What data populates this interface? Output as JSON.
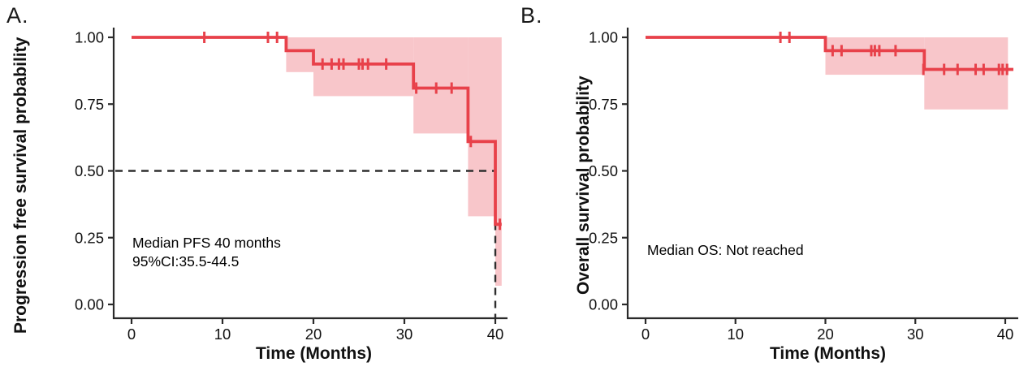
{
  "figure": {
    "background": "#ffffff"
  },
  "panels": [
    {
      "label": "A."
    },
    {
      "label": "B."
    }
  ],
  "chart_data": [
    {
      "type": "line",
      "subtype": "kaplan-meier-step",
      "panel": "A",
      "title": "",
      "xlabel": "Time (Months)",
      "ylabel": "Progression free survival probability",
      "xlim": [
        0,
        41
      ],
      "ylim": [
        0,
        1.0
      ],
      "grid": false,
      "legend": "none",
      "xticks": [
        0,
        10,
        20,
        30,
        40
      ],
      "xtick_labels": [
        "0",
        "10",
        "20",
        "30",
        "40"
      ],
      "yticks": [
        0.0,
        0.25,
        0.5,
        0.75,
        1.0
      ],
      "ytick_labels": [
        "0.00",
        "0.25",
        "0.50",
        "0.75",
        "1.00"
      ],
      "steps": [
        [
          0,
          1.0
        ],
        [
          17,
          1.0
        ],
        [
          17,
          0.95
        ],
        [
          20,
          0.95
        ],
        [
          20,
          0.9
        ],
        [
          31,
          0.9
        ],
        [
          31,
          0.81
        ],
        [
          37,
          0.81
        ],
        [
          37,
          0.61
        ],
        [
          40,
          0.61
        ],
        [
          40,
          0.3
        ],
        [
          40.7,
          0.3
        ]
      ],
      "censors": [
        [
          8,
          1.0
        ],
        [
          15,
          1.0
        ],
        [
          16,
          1.0
        ],
        [
          21,
          0.9
        ],
        [
          22,
          0.9
        ],
        [
          22.8,
          0.9
        ],
        [
          23.3,
          0.9
        ],
        [
          25,
          0.9
        ],
        [
          25.4,
          0.9
        ],
        [
          26,
          0.9
        ],
        [
          28,
          0.9
        ],
        [
          31.3,
          0.81
        ],
        [
          33.5,
          0.81
        ],
        [
          35.2,
          0.81
        ],
        [
          37.3,
          0.61
        ],
        [
          40.5,
          0.3
        ]
      ],
      "ci_band": [
        {
          "x": [
            17,
            20
          ],
          "lower": 0.87,
          "upper": 1.0
        },
        {
          "x": [
            20,
            31
          ],
          "lower": 0.78,
          "upper": 1.0
        },
        {
          "x": [
            31,
            37
          ],
          "lower": 0.64,
          "upper": 1.0
        },
        {
          "x": [
            37,
            40
          ],
          "lower": 0.33,
          "upper": 1.0
        },
        {
          "x": [
            40,
            40.7
          ],
          "lower": 0.07,
          "upper": 1.0
        }
      ],
      "reference_lines": {
        "h": 0.5,
        "v": 40
      },
      "annotation_lines": [
        "Median PFS 40 months",
        "95%CI:35.5-44.5"
      ],
      "line_color": "#e8414a",
      "band_color": "#f8c6ca",
      "ref_color": "#2e2e2e",
      "axis_color": "#2a2a2a"
    },
    {
      "type": "line",
      "subtype": "kaplan-meier-step",
      "panel": "B",
      "title": "",
      "xlabel": "Time (Months)",
      "ylabel": "Overall survival probability",
      "xlim": [
        0,
        41
      ],
      "ylim": [
        0,
        1.0
      ],
      "grid": false,
      "legend": "none",
      "xticks": [
        0,
        10,
        20,
        30,
        40
      ],
      "xtick_labels": [
        "0",
        "10",
        "20",
        "30",
        "40"
      ],
      "yticks": [
        0.0,
        0.25,
        0.5,
        0.75,
        1.0
      ],
      "ytick_labels": [
        "0.00",
        "0.25",
        "0.50",
        "0.75",
        "1.00"
      ],
      "steps": [
        [
          0,
          1.0
        ],
        [
          20,
          1.0
        ],
        [
          20,
          0.95
        ],
        [
          31,
          0.95
        ],
        [
          31,
          0.88
        ],
        [
          40.9,
          0.88
        ]
      ],
      "censors": [
        [
          15,
          1.0
        ],
        [
          16,
          1.0
        ],
        [
          20.8,
          0.95
        ],
        [
          21.8,
          0.95
        ],
        [
          25.1,
          0.95
        ],
        [
          25.5,
          0.95
        ],
        [
          26,
          0.95
        ],
        [
          27.8,
          0.95
        ],
        [
          30.9,
          0.88
        ],
        [
          33.2,
          0.88
        ],
        [
          34.7,
          0.88
        ],
        [
          36.7,
          0.88
        ],
        [
          37.6,
          0.88
        ],
        [
          39.3,
          0.88
        ],
        [
          39.7,
          0.88
        ],
        [
          40.2,
          0.88
        ]
      ],
      "ci_band": [
        {
          "x": [
            20,
            31
          ],
          "lower": 0.86,
          "upper": 1.0
        },
        {
          "x": [
            31,
            40.3
          ],
          "lower": 0.73,
          "upper": 1.0
        }
      ],
      "reference_lines": null,
      "annotation_lines": [
        "Median OS: Not reached"
      ],
      "line_color": "#e8414a",
      "band_color": "#f8c6ca",
      "ref_color": "#2e2e2e",
      "axis_color": "#2a2a2a"
    }
  ]
}
